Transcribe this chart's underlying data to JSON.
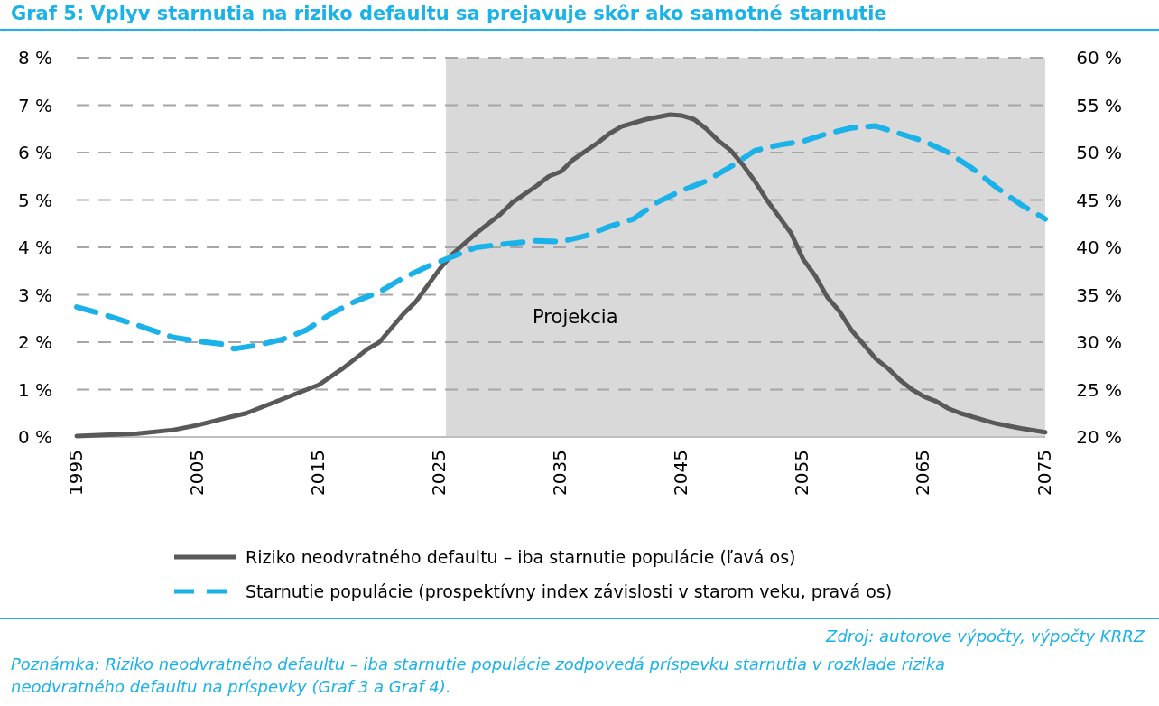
{
  "chart_data": {
    "type": "line",
    "title": "Graf 5: Vplyv starnutia na riziko defaultu sa prejavuje skôr ako samotné starnutie",
    "xlim": [
      1995,
      2075
    ],
    "xticks": [
      1995,
      2005,
      2015,
      2025,
      2035,
      2045,
      2055,
      2065,
      2075
    ],
    "ylim": [
      0,
      8
    ],
    "yticks": [
      {
        "value": 0,
        "label": "0 %"
      },
      {
        "value": 1,
        "label": "1 %"
      },
      {
        "value": 2,
        "label": "2 %"
      },
      {
        "value": 3,
        "label": "3 %"
      },
      {
        "value": 4,
        "label": "4 %"
      },
      {
        "value": 5,
        "label": "5 %"
      },
      {
        "value": 6,
        "label": "6 %"
      },
      {
        "value": 7,
        "label": "7 %"
      },
      {
        "value": 8,
        "label": "8 %"
      }
    ],
    "y2lim": [
      20,
      60
    ],
    "y2ticks": [
      {
        "value": 20,
        "label": "20 %"
      },
      {
        "value": 25,
        "label": "25 %"
      },
      {
        "value": 30,
        "label": "30 %"
      },
      {
        "value": 35,
        "label": "35 %"
      },
      {
        "value": 40,
        "label": "40 %"
      },
      {
        "value": 45,
        "label": "45 %"
      },
      {
        "value": 50,
        "label": "50 %"
      },
      {
        "value": 55,
        "label": "55 %"
      },
      {
        "value": 60,
        "label": "60 %"
      }
    ],
    "grid": "y",
    "legend": "bottom",
    "bands": [
      {
        "axis": "x",
        "from": 2025.5,
        "to": 2075,
        "label": "Projekcia",
        "color": "#d9d9d9"
      }
    ],
    "series": [
      {
        "name": "Riziko neodvratného defaultu – iba starnutie populácie (ľavá os)",
        "color": "#595959",
        "line_style": "solid",
        "x": [
          1995,
          2000,
          2003,
          2005,
          2007,
          2009,
          2011,
          2013,
          2015,
          2017,
          2019,
          2020,
          2021,
          2022,
          2023,
          2024,
          2025,
          2026,
          2028,
          2030,
          2031,
          2033,
          2034,
          2035,
          2036,
          2038,
          2039,
          2040,
          2042,
          2044,
          2045,
          2046,
          2047,
          2048,
          2049,
          2050,
          2051,
          2052,
          2053,
          2054,
          2055,
          2056,
          2057,
          2058,
          2059,
          2060,
          2061,
          2062,
          2063,
          2064,
          2065,
          2066,
          2067,
          2068,
          2070,
          2071,
          2073,
          2075
        ],
        "values": [
          0.02,
          0.07,
          0.15,
          0.25,
          0.38,
          0.5,
          0.7,
          0.9,
          1.1,
          1.45,
          1.85,
          2.0,
          2.3,
          2.6,
          2.85,
          3.2,
          3.55,
          3.85,
          4.3,
          4.7,
          4.95,
          5.3,
          5.5,
          5.6,
          5.85,
          6.2,
          6.4,
          6.55,
          6.7,
          6.8,
          6.78,
          6.7,
          6.5,
          6.25,
          6.05,
          5.75,
          5.4,
          5.0,
          4.65,
          4.3,
          3.75,
          3.4,
          2.95,
          2.65,
          2.25,
          1.95,
          1.65,
          1.45,
          1.2,
          1.0,
          0.85,
          0.75,
          0.6,
          0.5,
          0.35,
          0.28,
          0.18,
          0.1
        ]
      },
      {
        "name": "Starnutie populácie (prospektívny index závislosti v starom veku, pravá os)",
        "color": "#1ab2e8",
        "line_style": "dashed",
        "axis": "y2",
        "x": [
          1995,
          1997,
          2000,
          2003,
          2005,
          2007,
          2008,
          2010,
          2012,
          2014,
          2016,
          2018,
          2020,
          2022,
          2024,
          2026,
          2028,
          2030,
          2033,
          2035,
          2037,
          2039,
          2041,
          2043,
          2045,
          2047,
          2049,
          2051,
          2053,
          2055,
          2057,
          2059,
          2061,
          2063,
          2065,
          2067,
          2069,
          2071,
          2073,
          2075
        ],
        "values": [
          33.7,
          33,
          31.8,
          30.5,
          30.1,
          29.8,
          29.3,
          29.7,
          30.3,
          31.3,
          33,
          34.3,
          35.3,
          36.8,
          38,
          39,
          40,
          40.3,
          40.7,
          40.6,
          41.2,
          42.2,
          43,
          44.8,
          46,
          47,
          48.5,
          50.2,
          50.8,
          51.2,
          52,
          52.6,
          52.8,
          52,
          51.2,
          50,
          48.3,
          46.3,
          44.5,
          43
        ]
      }
    ],
    "annotations": [
      "Zdroj: autorove výpočty, výpočty KRRZ",
      "Poznámka: Riziko neodvratného defaultu – iba starnutie populácie zodpovedá príspevku starnutia v rozklade rizika neodvratného defaultu na príspevky (Graf 3 a Graf 4)."
    ]
  }
}
